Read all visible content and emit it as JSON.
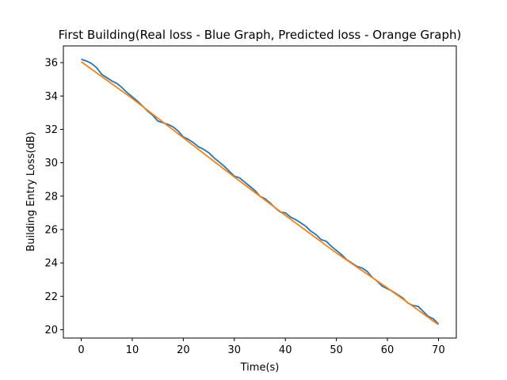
{
  "chart_data": {
    "type": "line",
    "title": "First Building(Real loss - Blue Graph, Predicted loss - Orange Graph)",
    "xlabel": "Time(s)",
    "ylabel": "Building Entry Loss(dB)",
    "xlim": [
      -3.5,
      73.5
    ],
    "ylim": [
      19.5,
      37.0
    ],
    "xticks": [
      0,
      10,
      20,
      30,
      40,
      50,
      60,
      70
    ],
    "yticks": [
      20,
      22,
      24,
      26,
      28,
      30,
      32,
      34,
      36
    ],
    "grid": false,
    "colors": {
      "real": "#1f77b4",
      "predicted": "#ff7f0e"
    },
    "series": [
      {
        "color": "#1f77b4",
        "x": [
          0,
          1,
          2,
          3,
          4,
          5,
          6,
          7,
          8,
          9,
          10,
          11,
          12,
          13,
          14,
          15,
          16,
          17,
          18,
          19,
          20,
          21,
          22,
          23,
          24,
          25,
          26,
          27,
          28,
          29,
          30,
          31,
          32,
          33,
          34,
          35,
          36,
          37,
          38,
          39,
          40,
          41,
          42,
          43,
          44,
          45,
          46,
          47,
          48,
          49,
          50,
          51,
          52,
          53,
          54,
          55,
          56,
          57,
          58,
          59,
          60,
          61,
          62,
          63,
          64,
          65,
          66,
          67,
          68,
          69,
          70
        ],
        "values": [
          36.2,
          36.1,
          35.95,
          35.7,
          35.3,
          35.1,
          34.9,
          34.75,
          34.5,
          34.2,
          33.95,
          33.7,
          33.4,
          33.1,
          32.85,
          32.5,
          32.4,
          32.3,
          32.15,
          31.9,
          31.55,
          31.4,
          31.2,
          30.95,
          30.8,
          30.6,
          30.3,
          30.05,
          29.8,
          29.5,
          29.2,
          29.1,
          28.85,
          28.6,
          28.35,
          28.0,
          27.85,
          27.6,
          27.3,
          27.05,
          27.0,
          26.75,
          26.6,
          26.4,
          26.2,
          25.9,
          25.7,
          25.4,
          25.3,
          25.0,
          24.75,
          24.5,
          24.2,
          24.0,
          23.8,
          23.7,
          23.5,
          23.15,
          22.9,
          22.6,
          22.45,
          22.3,
          22.1,
          21.9,
          21.6,
          21.45,
          21.4,
          21.1,
          20.8,
          20.65,
          20.35
        ]
      },
      {
        "color": "#ff7f0e",
        "x": [
          0,
          10,
          20,
          30,
          40,
          50,
          60,
          70
        ],
        "values": [
          36.05,
          33.85,
          31.5,
          29.15,
          26.85,
          24.6,
          22.5,
          20.3
        ]
      }
    ]
  }
}
